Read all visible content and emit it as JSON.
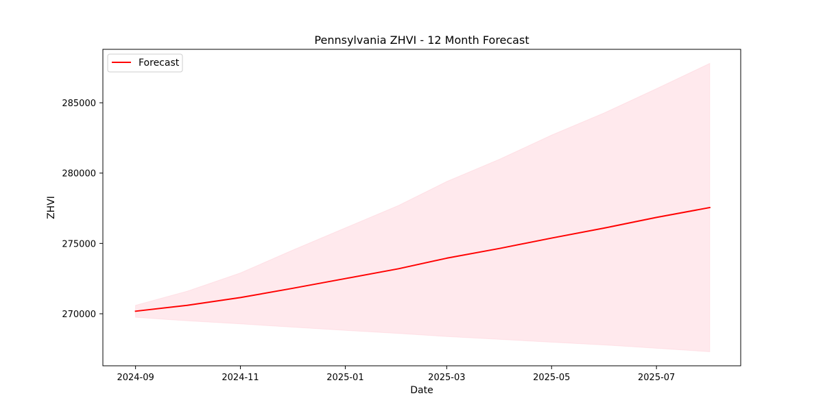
{
  "chart_data": {
    "type": "line",
    "title": "Pennsylvania ZHVI - 12 Month Forecast",
    "xlabel": "Date",
    "ylabel": "ZHVI",
    "x_ticks": [
      "2024-09",
      "2024-11",
      "2025-01",
      "2025-03",
      "2025-05",
      "2025-07"
    ],
    "y_ticks": [
      270000,
      275000,
      280000,
      285000
    ],
    "xlim": [
      "2024-08-13",
      "2025-08-19"
    ],
    "ylim": [
      266300,
      288800
    ],
    "x": [
      "2024-09-01",
      "2024-10-01",
      "2024-11-01",
      "2024-12-01",
      "2025-01-01",
      "2025-02-01",
      "2025-03-01",
      "2025-04-01",
      "2025-05-01",
      "2025-06-01",
      "2025-07-01",
      "2025-08-01"
    ],
    "series": [
      {
        "name": "Forecast",
        "color": "#ff0000",
        "values": [
          270180,
          270600,
          271150,
          271800,
          272500,
          273200,
          273950,
          274650,
          275380,
          276100,
          276850,
          277550
        ]
      }
    ],
    "confidence_band": {
      "color": "#ffc0cb",
      "lower": [
        269750,
        269500,
        269280,
        269050,
        268820,
        268600,
        268380,
        268180,
        267980,
        267780,
        267550,
        267300
      ],
      "upper": [
        270600,
        271600,
        272900,
        274500,
        276100,
        277700,
        279400,
        281000,
        282700,
        284300,
        286000,
        287800
      ]
    },
    "grid": false,
    "legend": {
      "position": "top-left",
      "entries": [
        "Forecast"
      ]
    }
  }
}
